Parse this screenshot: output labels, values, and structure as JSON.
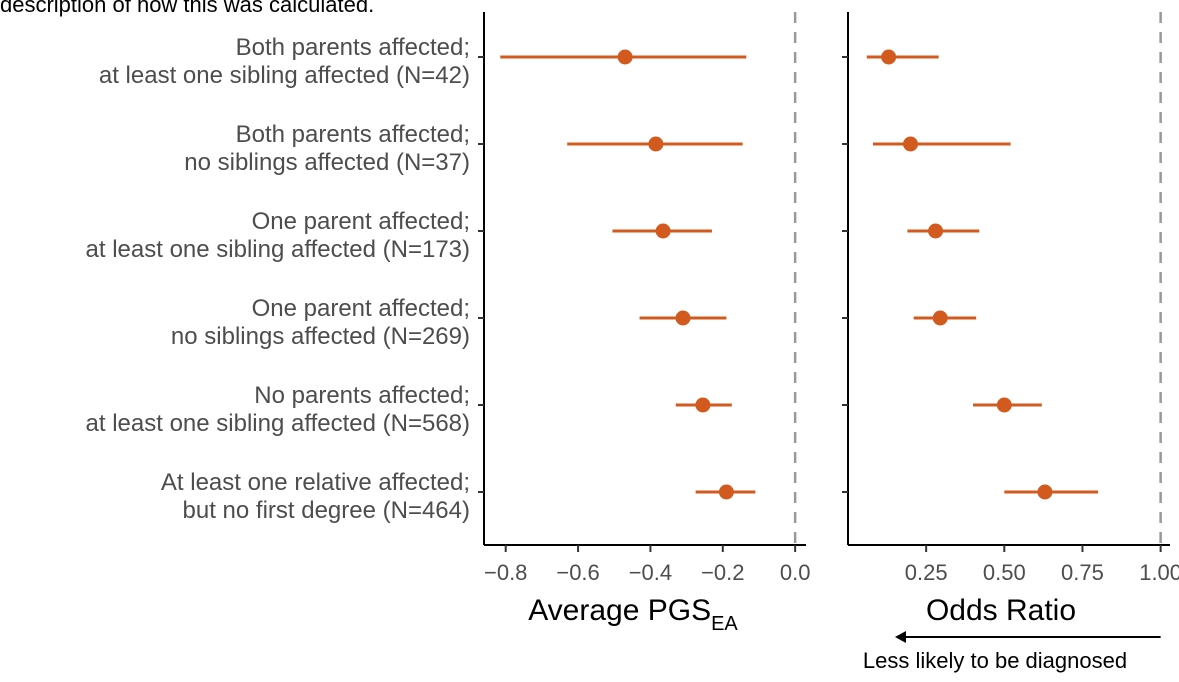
{
  "header_note": "description of how this was calculated.",
  "chart_data": [
    {
      "type": "scatter",
      "title": "",
      "xlabel": "Average PGS",
      "xlabel_subscript": "EA",
      "xlim": [
        -0.86,
        0.03
      ],
      "xticks": [
        -0.8,
        -0.6,
        -0.4,
        -0.2,
        0.0
      ],
      "xtick_labels": [
        "−0.8",
        "−0.6",
        "−0.4",
        "−0.2",
        "0.0"
      ],
      "reference_line": 0.0,
      "categories": [
        [
          "Both parents affected;",
          "at least one sibling affected (N=42)"
        ],
        [
          "Both parents affected;",
          "no siblings affected (N=37)"
        ],
        [
          "One parent affected;",
          "at least one sibling affected (N=173)"
        ],
        [
          "One parent affected;",
          "no siblings affected (N=269)"
        ],
        [
          "No parents affected;",
          "at least one sibling affected (N=568)"
        ],
        [
          "At least one relative affected;",
          "but no first degree (N=464)"
        ]
      ],
      "estimates": [
        -0.47,
        -0.385,
        -0.365,
        -0.31,
        -0.255,
        -0.19
      ],
      "ci_low": [
        -0.815,
        -0.63,
        -0.505,
        -0.43,
        -0.33,
        -0.275
      ],
      "ci_high": [
        -0.135,
        -0.145,
        -0.23,
        -0.19,
        -0.175,
        -0.11
      ],
      "point_color": "#d35a1e",
      "grid": false
    },
    {
      "type": "scatter",
      "title": "",
      "xlabel": "Odds Ratio",
      "xlim": [
        0.0,
        1.03
      ],
      "xticks": [
        0.25,
        0.5,
        0.75,
        1.0
      ],
      "xtick_labels": [
        "0.25",
        "0.50",
        "0.75",
        "1.00"
      ],
      "reference_line": 1.0,
      "estimates": [
        0.13,
        0.2,
        0.28,
        0.295,
        0.5,
        0.63
      ],
      "ci_low": [
        0.06,
        0.08,
        0.19,
        0.21,
        0.4,
        0.5
      ],
      "ci_high": [
        0.29,
        0.52,
        0.42,
        0.41,
        0.62,
        0.8
      ],
      "point_color": "#d35a1e",
      "grid": false,
      "direction_note": "Less likely to be diagnosed"
    }
  ]
}
